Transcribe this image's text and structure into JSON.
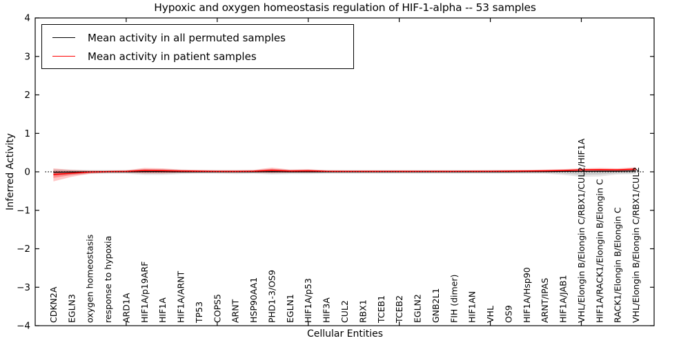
{
  "chart_data": {
    "type": "line",
    "title": "Hypoxic and oxygen homeostasis regulation of HIF-1-alpha -- 53 samples",
    "xlabel": "Cellular Entities",
    "ylabel": "Inferred Activity",
    "ylim": [
      -4,
      4
    ],
    "yticks": [
      4,
      3,
      2,
      1,
      0,
      -1,
      -2,
      -3,
      -4
    ],
    "xticks": [
      5,
      10,
      15,
      20,
      25,
      30
    ],
    "grid": false,
    "zero_line": true,
    "legend": {
      "position": "upper left",
      "items": [
        {
          "label": "Mean activity in all permuted samples",
          "color": "#000000"
        },
        {
          "label": "Mean activity in patient samples",
          "color": "#ff0000"
        }
      ]
    },
    "categories": [
      "CDKN2A",
      "EGLN3",
      "oxygen homeostasis",
      "response to hypoxia",
      "ARD1A",
      "HIF1A/p19ARF",
      "HIF1A",
      "HIF1A/ARNT",
      "TP53",
      "COPS5",
      "ARNT",
      "HSP90AA1",
      "PHD1-3/OS9",
      "EGLN1",
      "HIF1A/p53",
      "HIF3A",
      "CUL2",
      "RBX1",
      "TCEB1",
      "TCEB2",
      "EGLN2",
      "GNB2L1",
      "FIH (dimer)",
      "HIF1AN",
      "VHL",
      "OS9",
      "HIF1A/Hsp90",
      "ARNT/IPAS",
      "HIF1A/JAB1",
      "VHL/Elongin B/Elongin C/RBX1/CUL2/HIF1A",
      "HIF1A/RACK1/Elongin B/Elongin C",
      "RACK1/Elongin B/Elongin C",
      "VHL/Elongin B/Elongin C/RBX1/CUL2"
    ],
    "series": [
      {
        "key": "permuted-mean",
        "name": "Mean activity in all permuted samples",
        "color": "#000000",
        "values": [
          -0.01,
          -0.005,
          0,
          0,
          0,
          0.005,
          0.005,
          0,
          0,
          0,
          0,
          0,
          0.005,
          0,
          0,
          0,
          0,
          0,
          0,
          0,
          0,
          0,
          0,
          0,
          0,
          0,
          0.005,
          0.005,
          0.01,
          0.01,
          0.015,
          0.015,
          0.025
        ]
      },
      {
        "key": "patient-mean",
        "name": "Mean activity in patient samples",
        "color": "#ff0000",
        "values": [
          -0.07,
          -0.035,
          -0.005,
          0.005,
          0.01,
          0.035,
          0.03,
          0.02,
          0.015,
          0.01,
          0.01,
          0.015,
          0.04,
          0.02,
          0.025,
          0.012,
          0.01,
          0.01,
          0.01,
          0.01,
          0.01,
          0.01,
          0.01,
          0.012,
          0.012,
          0.015,
          0.02,
          0.025,
          0.035,
          0.05,
          0.055,
          0.05,
          0.07
        ]
      }
    ],
    "bands": [
      {
        "key": "permuted-ci-outer",
        "color": "#000000",
        "opacity": 0.1,
        "upper": [
          0.07,
          0.06,
          0.05,
          0.05,
          0.05,
          0.07,
          0.07,
          0.06,
          0.05,
          0.05,
          0.05,
          0.05,
          0.07,
          0.06,
          0.06,
          0.05,
          0.05,
          0.05,
          0.05,
          0.05,
          0.05,
          0.05,
          0.05,
          0.05,
          0.05,
          0.05,
          0.05,
          0.05,
          0.06,
          0.07,
          0.07,
          0.06,
          0.08
        ],
        "lower": [
          -0.1,
          -0.08,
          -0.06,
          -0.05,
          -0.05,
          -0.08,
          -0.08,
          -0.06,
          -0.05,
          -0.05,
          -0.06,
          -0.05,
          -0.07,
          -0.06,
          -0.06,
          -0.05,
          -0.05,
          -0.05,
          -0.05,
          -0.05,
          -0.05,
          -0.05,
          -0.05,
          -0.05,
          -0.05,
          -0.05,
          -0.05,
          -0.05,
          -0.08,
          -0.13,
          -0.12,
          -0.07,
          -0.06
        ]
      },
      {
        "key": "permuted-ci-inner",
        "color": "#000000",
        "opacity": 0.12,
        "upper": [
          0.04,
          0.035,
          0.03,
          0.03,
          0.03,
          0.04,
          0.04,
          0.035,
          0.03,
          0.03,
          0.03,
          0.03,
          0.04,
          0.035,
          0.035,
          0.03,
          0.03,
          0.03,
          0.03,
          0.03,
          0.03,
          0.03,
          0.03,
          0.03,
          0.03,
          0.03,
          0.03,
          0.03,
          0.035,
          0.04,
          0.04,
          0.035,
          0.045
        ],
        "lower": [
          -0.055,
          -0.045,
          -0.035,
          -0.03,
          -0.03,
          -0.045,
          -0.045,
          -0.035,
          -0.03,
          -0.03,
          -0.035,
          -0.03,
          -0.04,
          -0.035,
          -0.035,
          -0.03,
          -0.03,
          -0.03,
          -0.03,
          -0.03,
          -0.03,
          -0.03,
          -0.03,
          -0.03,
          -0.03,
          -0.03,
          -0.03,
          -0.03,
          -0.045,
          -0.075,
          -0.07,
          -0.04,
          -0.035
        ]
      },
      {
        "key": "patient-ci-outer",
        "color": "#ff0000",
        "opacity": 0.22,
        "upper": [
          0.09,
          0.05,
          0.03,
          0.03,
          0.04,
          0.1,
          0.09,
          0.06,
          0.05,
          0.04,
          0.04,
          0.05,
          0.11,
          0.06,
          0.07,
          0.04,
          0.035,
          0.035,
          0.035,
          0.035,
          0.035,
          0.035,
          0.035,
          0.035,
          0.04,
          0.045,
          0.05,
          0.06,
          0.07,
          0.09,
          0.1,
          0.09,
          0.12
        ],
        "lower": [
          -0.25,
          -0.13,
          -0.05,
          -0.025,
          -0.02,
          -0.04,
          -0.04,
          -0.025,
          -0.02,
          -0.02,
          -0.02,
          -0.02,
          -0.03,
          -0.02,
          -0.02,
          -0.015,
          -0.015,
          -0.015,
          -0.015,
          -0.015,
          -0.015,
          -0.015,
          -0.015,
          -0.015,
          -0.015,
          -0.015,
          -0.01,
          -0.005,
          0,
          0.01,
          0.015,
          0.01,
          0.02
        ]
      },
      {
        "key": "patient-ci-inner",
        "color": "#ff0000",
        "opacity": 0.28,
        "upper": [
          0.01,
          0.005,
          0.012,
          0.018,
          0.025,
          0.067,
          0.06,
          0.04,
          0.032,
          0.025,
          0.025,
          0.032,
          0.075,
          0.04,
          0.047,
          0.026,
          0.022,
          0.022,
          0.022,
          0.022,
          0.022,
          0.022,
          0.022,
          0.023,
          0.026,
          0.03,
          0.035,
          0.042,
          0.052,
          0.07,
          0.077,
          0.07,
          0.095
        ],
        "lower": [
          -0.16,
          -0.082,
          -0.027,
          -0.01,
          -0.005,
          -0.002,
          -0.005,
          -0.002,
          -0.002,
          -0.005,
          -0.005,
          -0.002,
          0.005,
          0,
          0.002,
          -0.001,
          -0.002,
          -0.002,
          -0.002,
          -0.002,
          -0.002,
          -0.002,
          -0.002,
          -0.001,
          -0.001,
          0,
          0.005,
          0.01,
          0.017,
          0.03,
          0.035,
          0.03,
          0.045
        ]
      }
    ]
  }
}
